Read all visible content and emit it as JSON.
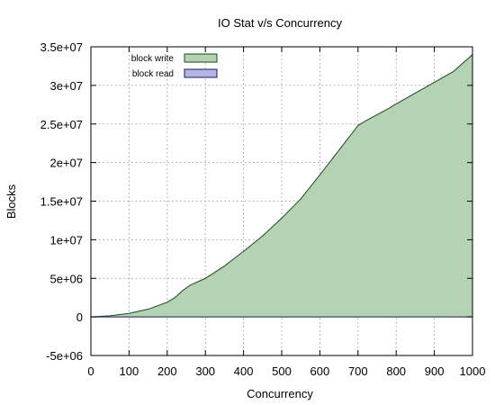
{
  "chart_data": {
    "type": "area",
    "title": "IO Stat v/s Concurrency",
    "xlabel": "Concurrency",
    "ylabel": "Blocks",
    "xlim": [
      0,
      1000
    ],
    "ylim": [
      -5000000,
      35000000
    ],
    "x_ticks": [
      0,
      100,
      200,
      300,
      400,
      500,
      600,
      700,
      800,
      900,
      1000
    ],
    "x_tick_labels": [
      "0",
      "100",
      "200",
      "300",
      "400",
      "500",
      "600",
      "700",
      "800",
      "900",
      "1000"
    ],
    "y_ticks": [
      -5000000,
      0,
      5000000,
      10000000,
      15000000,
      20000000,
      25000000,
      30000000,
      35000000
    ],
    "y_tick_labels": [
      "-5e+06",
      "0",
      "5e+06",
      "1e+07",
      "1.5e+07",
      "2e+07",
      "2.5e+07",
      "3e+07",
      "3.5e+07"
    ],
    "grid": true,
    "legend_position": "top-left",
    "series": [
      {
        "name": "block write",
        "color": "#b4d2b4",
        "line_color": "#1a4a1a",
        "x": [
          0,
          50,
          100,
          150,
          200,
          220,
          240,
          260,
          300,
          350,
          400,
          450,
          500,
          550,
          600,
          650,
          700,
          720,
          750,
          780,
          800,
          850,
          900,
          950,
          1000
        ],
        "y": [
          0,
          150000,
          450000,
          1000000,
          1900000,
          2500000,
          3400000,
          4100000,
          5000000,
          6600000,
          8500000,
          10500000,
          12800000,
          15300000,
          18400000,
          21600000,
          24800000,
          25400000,
          26200000,
          27000000,
          27600000,
          29000000,
          30400000,
          31800000,
          34000000
        ]
      },
      {
        "name": "block read",
        "color": "#b4b4e6",
        "line_color": "#1a1a5a",
        "x": [
          0,
          1000
        ],
        "y": [
          0,
          0
        ]
      }
    ]
  }
}
